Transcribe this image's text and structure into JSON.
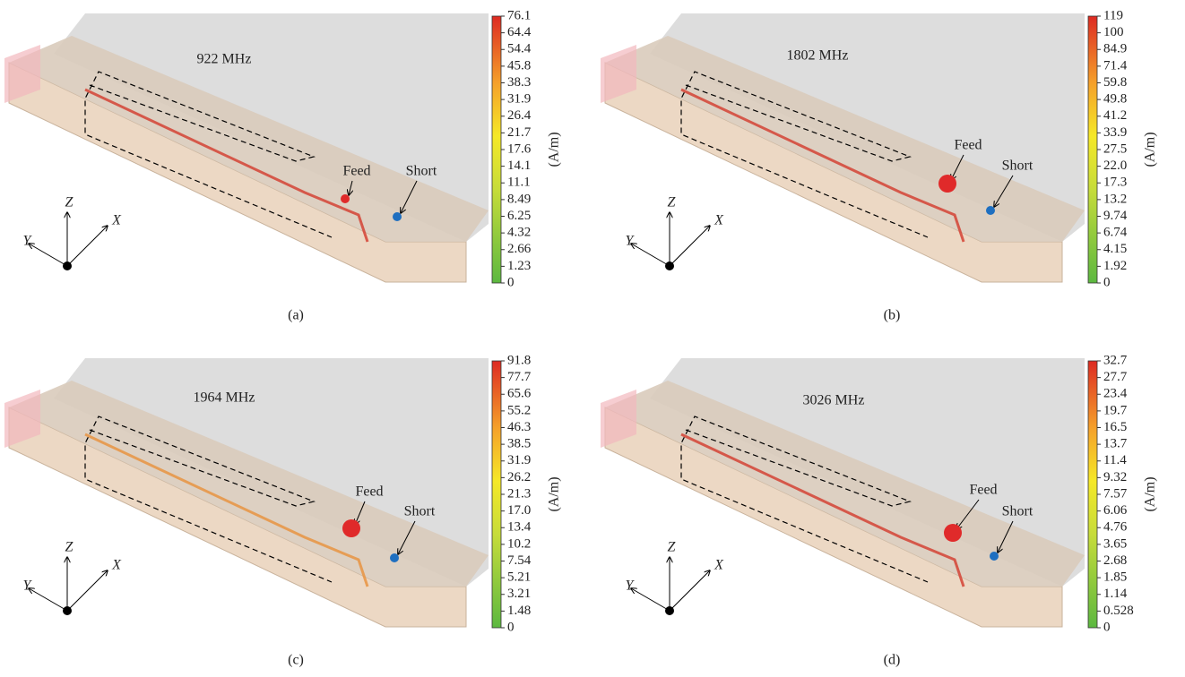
{
  "panels": [
    {
      "frequency": "922 MHz",
      "feed": "Feed",
      "short": "Short",
      "axes": {
        "x": "X",
        "y": "Y",
        "z": "Z"
      },
      "unit": "(A/m)",
      "caption": "(a)",
      "colorbar_ticks": [
        "76.1",
        "64.4",
        "54.4",
        "45.8",
        "38.3",
        "31.9",
        "26.4",
        "21.7",
        "17.6",
        "14.1",
        "11.1",
        "8.49",
        "6.25",
        "4.32",
        "2.66",
        "1.23",
        "0"
      ]
    },
    {
      "frequency": "1802 MHz",
      "feed": "Feed",
      "short": "Short",
      "axes": {
        "x": "X",
        "y": "Y",
        "z": "Z"
      },
      "unit": "(A/m)",
      "caption": "(b)",
      "colorbar_ticks": [
        "119",
        "100",
        "84.9",
        "71.4",
        "59.8",
        "49.8",
        "41.2",
        "33.9",
        "27.5",
        "22.0",
        "17.3",
        "13.2",
        "9.74",
        "6.74",
        "4.15",
        "1.92",
        "0"
      ]
    },
    {
      "frequency": "1964 MHz",
      "feed": "Feed",
      "short": "Short",
      "axes": {
        "x": "X",
        "y": "Y",
        "z": "Z"
      },
      "unit": "(A/m)",
      "caption": "(c)",
      "colorbar_ticks": [
        "91.8",
        "77.7",
        "65.6",
        "55.2",
        "46.3",
        "38.5",
        "31.9",
        "26.2",
        "21.3",
        "17.0",
        "13.4",
        "10.2",
        "7.54",
        "5.21",
        "3.21",
        "1.48",
        "0"
      ]
    },
    {
      "frequency": "3026 MHz",
      "feed": "Feed",
      "short": "Short",
      "axes": {
        "x": "X",
        "y": "Y",
        "z": "Z"
      },
      "unit": "(A/m)",
      "caption": "(d)",
      "colorbar_ticks": [
        "32.7",
        "27.7",
        "23.4",
        "19.7",
        "16.5",
        "13.7",
        "11.4",
        "9.32",
        "7.57",
        "6.06",
        "4.76",
        "3.65",
        "2.68",
        "1.85",
        "1.14",
        "0.528",
        "0"
      ]
    }
  ]
}
